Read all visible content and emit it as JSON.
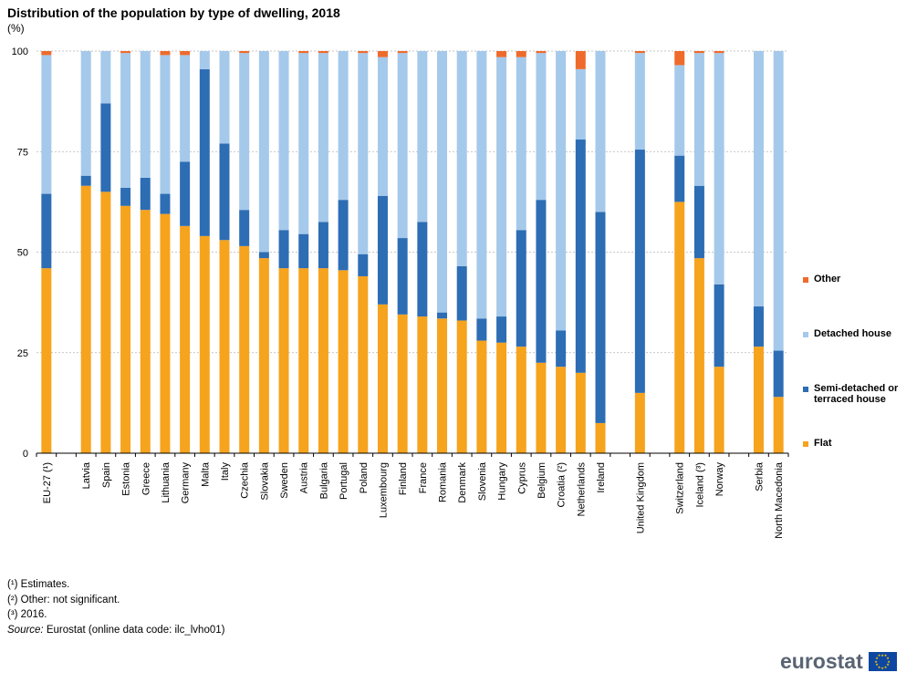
{
  "title": "Distribution of the population by type of dwelling, 2018",
  "unit": "(%)",
  "chart_data": {
    "type": "bar",
    "stacked": true,
    "categories": [
      "EU-27 (¹)",
      "Latvia",
      "Spain",
      "Estonia",
      "Greece",
      "Lithuania",
      "Germany",
      "Malta",
      "Italy",
      "Czechia",
      "Slovakia",
      "Sweden",
      "Austria",
      "Bulgaria",
      "Portugal",
      "Poland",
      "Luxembourg",
      "Finland",
      "France",
      "Romania",
      "Denmark",
      "Slovenia",
      "Hungary",
      "Cyprus",
      "Belgium",
      "Croatia (²)",
      "Netherlands",
      "Ireland",
      "United Kingdom",
      "Switzerland",
      "Iceland (³)",
      "Norway",
      "Serbia",
      "North Macedonia"
    ],
    "groups": [
      1,
      27,
      1,
      3,
      2
    ],
    "series": [
      {
        "name": "Flat",
        "color": "#f6a31e",
        "values": [
          46.0,
          66.5,
          65.0,
          61.5,
          60.5,
          59.5,
          56.5,
          54.0,
          53.0,
          51.5,
          48.5,
          46.0,
          46.0,
          46.0,
          45.5,
          44.0,
          37.0,
          34.5,
          34.0,
          33.5,
          33.0,
          28.0,
          27.5,
          26.5,
          22.5,
          21.5,
          20.0,
          7.5,
          15.0,
          62.5,
          48.5,
          21.5,
          26.5,
          14.0
        ]
      },
      {
        "name": "Semi-detached or terraced house",
        "color": "#2d6db4",
        "values": [
          18.5,
          2.5,
          22.0,
          4.5,
          8.0,
          5.0,
          16.0,
          41.5,
          24.0,
          9.0,
          1.5,
          9.5,
          8.5,
          11.5,
          17.5,
          5.5,
          27.0,
          19.0,
          23.5,
          1.5,
          13.5,
          5.5,
          6.5,
          29.0,
          40.5,
          9.0,
          58.0,
          52.5,
          60.5,
          11.5,
          18.0,
          20.5,
          10.0,
          11.5
        ]
      },
      {
        "name": "Detached house",
        "color": "#a5c9eb",
        "values": [
          34.5,
          31.0,
          13.0,
          33.5,
          31.5,
          34.5,
          26.5,
          4.5,
          23.0,
          39.0,
          50.0,
          44.5,
          45.0,
          42.0,
          37.0,
          50.0,
          34.5,
          46.0,
          42.5,
          65.0,
          53.5,
          66.5,
          64.5,
          43.0,
          36.5,
          69.5,
          17.5,
          40.0,
          24.0,
          22.5,
          33.0,
          57.5,
          63.5,
          74.5
        ]
      },
      {
        "name": "Other",
        "color": "#ee6b2c",
        "values": [
          1.0,
          0.0,
          0.0,
          0.5,
          0.0,
          1.0,
          1.0,
          0.0,
          0.0,
          0.5,
          0.0,
          0.0,
          0.5,
          0.5,
          0.0,
          0.5,
          1.5,
          0.5,
          0.0,
          0.0,
          0.0,
          0.0,
          1.5,
          1.5,
          0.5,
          0.0,
          4.5,
          0.0,
          0.5,
          3.5,
          0.5,
          0.5,
          0.0,
          0.0
        ]
      }
    ],
    "ylim": [
      0,
      100
    ],
    "yticks": [
      0,
      25,
      50,
      75,
      100
    ],
    "grid": true,
    "legend_position": "right",
    "legend_order": [
      "Other",
      "Detached house",
      "Semi-detached or terraced house",
      "Flat"
    ],
    "legend_lines": {
      "Other": [
        "Other"
      ],
      "Detached house": [
        "Detached house"
      ],
      "Semi-detached or terraced house": [
        "Semi-detached or",
        "terraced house"
      ],
      "Flat": [
        "Flat"
      ]
    },
    "title": "Distribution of the population by type of dwelling, 2018",
    "xlabel": "",
    "ylabel": "(%)"
  },
  "footnotes": [
    "(¹) Estimates.",
    "(²) Other: not significant.",
    "(³) 2016."
  ],
  "source": {
    "label": "Source:",
    "text": "Eurostat (online data code: ilc_lvho01)"
  },
  "logo": {
    "text": "eurostat",
    "flag_color": "#0e47a1",
    "star_color": "#ffcc00"
  }
}
